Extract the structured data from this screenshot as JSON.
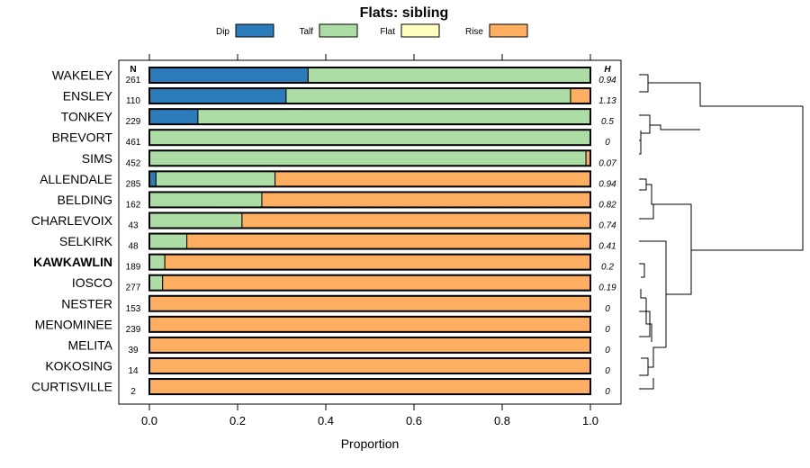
{
  "chart_data": {
    "type": "bar",
    "orientation": "horizontal",
    "stacked": true,
    "title": "Flats: sibling",
    "xlabel": "Proportion",
    "xlim": [
      0,
      1
    ],
    "xticks": [
      "0.0",
      "0.2",
      "0.4",
      "0.6",
      "0.8",
      "1.0"
    ],
    "n_header": "N",
    "h_header": "H",
    "legend_position": "top",
    "categories": [
      "WAKELEY",
      "ENSLEY",
      "TONKEY",
      "BREVORT",
      "SIMS",
      "ALLENDALE",
      "BELDING",
      "CHARLEVOIX",
      "SELKIRK",
      "KAWKAWLIN",
      "IOSCO",
      "NESTER",
      "MENOMINEE",
      "MELITA",
      "KOKOSING",
      "CURTISVILLE"
    ],
    "highlighted": [
      "KAWKAWLIN"
    ],
    "n": [
      261,
      110,
      229,
      461,
      452,
      285,
      162,
      43,
      48,
      189,
      277,
      153,
      239,
      39,
      14,
      2
    ],
    "h": [
      "0.94",
      "1.13",
      "0.5",
      "0",
      "0.07",
      "0.94",
      "0.82",
      "0.74",
      "0.41",
      "0.2",
      "0.19",
      "0",
      "0",
      "0",
      "0",
      "0"
    ],
    "series": [
      {
        "name": "Dip",
        "color": "#2b7bba",
        "values": [
          0.36,
          0.31,
          0.11,
          0,
          0,
          0.015,
          0,
          0,
          0,
          0,
          0,
          0,
          0,
          0,
          0,
          0
        ]
      },
      {
        "name": "Talf",
        "color": "#abdda4",
        "values": [
          0.64,
          0.645,
          0.89,
          1.0,
          0.99,
          0.27,
          0.255,
          0.21,
          0.085,
          0.035,
          0.03,
          0,
          0,
          0,
          0,
          0
        ]
      },
      {
        "name": "Flat",
        "color": "#ffffbf",
        "values": [
          0,
          0,
          0,
          0,
          0,
          0,
          0,
          0,
          0,
          0,
          0,
          0,
          0,
          0,
          0,
          0
        ]
      },
      {
        "name": "Rise",
        "color": "#fdae61",
        "values": [
          0,
          0.045,
          0,
          0,
          0.01,
          0.715,
          0.745,
          0.79,
          0.915,
          0.965,
          0.97,
          1.0,
          1.0,
          1.0,
          1.0,
          1.0
        ]
      }
    ],
    "dendrogram": "hierarchical clustering of rows"
  }
}
